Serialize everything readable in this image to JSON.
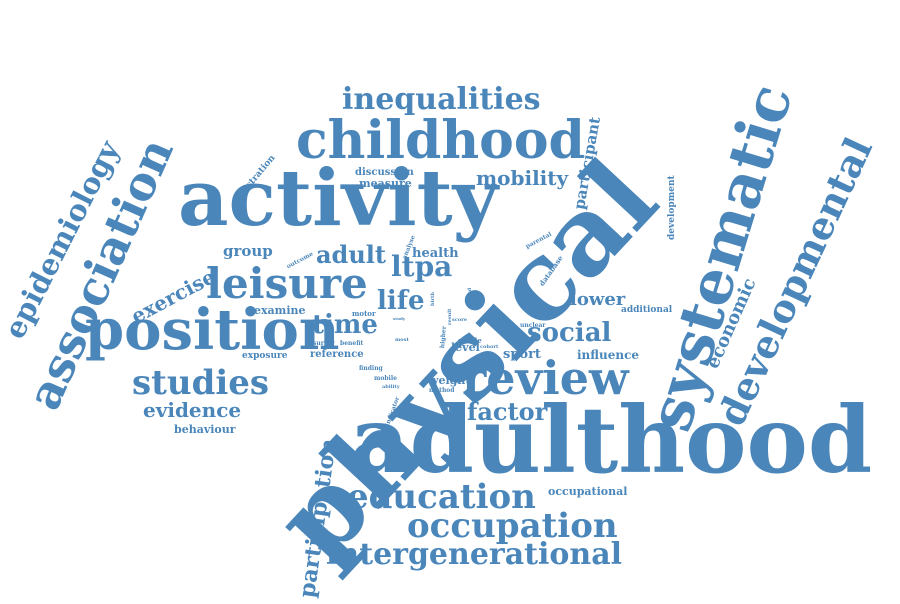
{
  "color": "#4a86ba",
  "words": [
    "physical",
    "adulthood",
    "activity",
    "systematic",
    "position",
    "association",
    "childhood",
    "developmental",
    "review",
    "leisure",
    "epidemiology",
    "studies",
    "inequalities",
    "education",
    "occupation",
    "intergenerational",
    "participation",
    "social",
    "economic",
    "mobility",
    "exercise",
    "evidence",
    "factor",
    "time",
    "life",
    "ltpa",
    "adult",
    "lower",
    "participant",
    "sport",
    "group",
    "health",
    "influence",
    "level",
    "weight",
    "development",
    "occupational",
    "discussion",
    "measure",
    "registration",
    "behaviour",
    "examine",
    "additional",
    "reference",
    "exposure",
    "outcome",
    "analyse",
    "motor",
    "parental",
    "database",
    "survey",
    "benefit",
    "finding",
    "mobile",
    "ability",
    "method",
    "indicator",
    "cohort",
    "higher",
    "stable",
    "unclear",
    "birth",
    "score",
    "result",
    "study",
    "most",
    "gene",
    "stud"
  ]
}
